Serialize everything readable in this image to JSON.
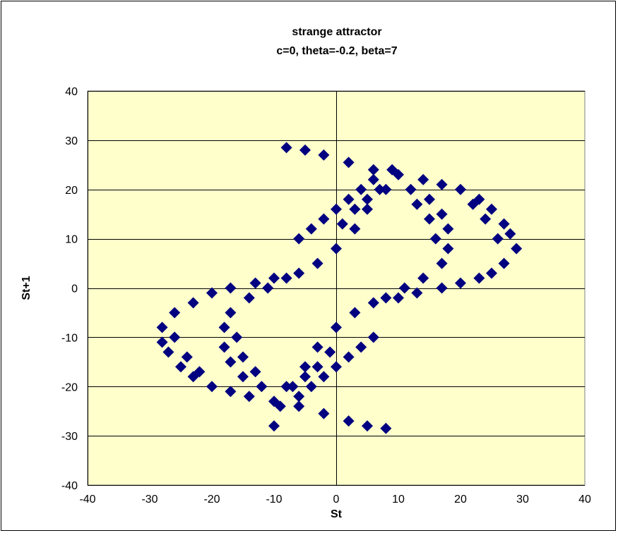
{
  "chart_data": {
    "type": "scatter",
    "title": "strange attractor",
    "subtitle": "c=0,  theta=-0.2, beta=7",
    "xlabel": "St",
    "ylabel": "St+1",
    "xlim": [
      -40,
      40
    ],
    "ylim": [
      -40,
      40
    ],
    "xticks": [
      -40,
      -30,
      -20,
      -10,
      0,
      10,
      20,
      30,
      40
    ],
    "yticks": [
      -40,
      -30,
      -20,
      -10,
      0,
      10,
      20,
      30,
      40
    ],
    "grid": "horizontal",
    "legend": "none",
    "plot_background": "#ffffcc",
    "marker_color": "#000080",
    "marker": "diamond",
    "series": [
      {
        "values": [
          [
            -8,
            28.5
          ],
          [
            -5,
            28
          ],
          [
            -2,
            27
          ],
          [
            2,
            25.5
          ],
          [
            6,
            24
          ],
          [
            10,
            23
          ],
          [
            14,
            22
          ],
          [
            17,
            21
          ],
          [
            20,
            20
          ],
          [
            23,
            18
          ],
          [
            25,
            16
          ],
          [
            27,
            13
          ],
          [
            28,
            11
          ],
          [
            29,
            8
          ],
          [
            27,
            5
          ],
          [
            25,
            3
          ],
          [
            23,
            2
          ],
          [
            20,
            1
          ],
          [
            17,
            0
          ],
          [
            13,
            -1
          ],
          [
            10,
            -2
          ],
          [
            6,
            -3
          ],
          [
            3,
            -5
          ],
          [
            0,
            -8
          ],
          [
            -3,
            -12
          ],
          [
            -5,
            -16
          ],
          [
            -7,
            -20
          ],
          [
            -9,
            -24
          ],
          [
            -10,
            -28
          ],
          [
            -6,
            10
          ],
          [
            -4,
            12
          ],
          [
            -2,
            14
          ],
          [
            0,
            16
          ],
          [
            2,
            18
          ],
          [
            4,
            20
          ],
          [
            6,
            22
          ],
          [
            -28,
            -8
          ],
          [
            -26,
            -5
          ],
          [
            -23,
            -3
          ],
          [
            -20,
            -1
          ],
          [
            -17,
            0
          ],
          [
            -13,
            1
          ],
          [
            -10,
            2
          ],
          [
            -6,
            3
          ],
          [
            -3,
            5
          ],
          [
            0,
            8
          ],
          [
            3,
            12
          ],
          [
            5,
            16
          ],
          [
            7,
            20
          ],
          [
            9,
            24
          ],
          [
            8,
            -28.5
          ],
          [
            5,
            -28
          ],
          [
            2,
            -27
          ],
          [
            -2,
            -25.5
          ],
          [
            -6,
            -24
          ],
          [
            -10,
            -23
          ],
          [
            -14,
            -22
          ],
          [
            -17,
            -21
          ],
          [
            -20,
            -20
          ],
          [
            -23,
            -18
          ],
          [
            -25,
            -16
          ],
          [
            -27,
            -13
          ],
          [
            -28,
            -11
          ],
          [
            6,
            -10
          ],
          [
            4,
            -12
          ],
          [
            2,
            -14
          ],
          [
            0,
            -16
          ],
          [
            -2,
            -18
          ],
          [
            -4,
            -20
          ],
          [
            -6,
            -22
          ],
          [
            8,
            20
          ],
          [
            12,
            20
          ],
          [
            15,
            18
          ],
          [
            17,
            15
          ],
          [
            18,
            12
          ],
          [
            18,
            8
          ],
          [
            17,
            5
          ],
          [
            14,
            2
          ],
          [
            11,
            0
          ],
          [
            8,
            -2
          ],
          [
            -8,
            -20
          ],
          [
            -12,
            -20
          ],
          [
            -15,
            -18
          ],
          [
            -17,
            -15
          ],
          [
            -18,
            -12
          ],
          [
            -18,
            -8
          ],
          [
            -17,
            -5
          ],
          [
            -14,
            -2
          ],
          [
            -11,
            0
          ],
          [
            -8,
            2
          ],
          [
            3,
            16
          ],
          [
            5,
            18
          ],
          [
            1,
            13
          ],
          [
            13,
            17
          ],
          [
            15,
            14
          ],
          [
            16,
            10
          ],
          [
            -3,
            -16
          ],
          [
            -5,
            -18
          ],
          [
            -1,
            -13
          ],
          [
            -13,
            -17
          ],
          [
            -15,
            -14
          ],
          [
            -16,
            -10
          ],
          [
            22,
            17
          ],
          [
            24,
            14
          ],
          [
            26,
            10
          ],
          [
            -22,
            -17
          ],
          [
            -24,
            -14
          ],
          [
            -26,
            -10
          ]
        ]
      }
    ]
  }
}
